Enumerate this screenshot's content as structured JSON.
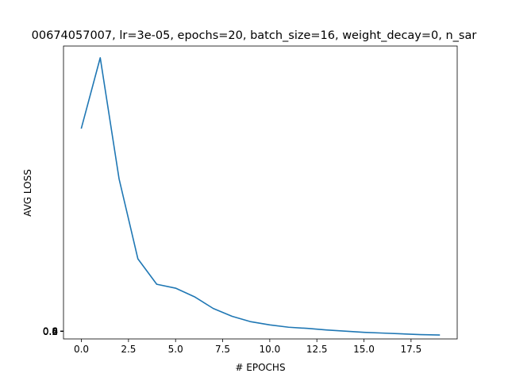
{
  "chart_data": {
    "type": "line",
    "title": "00674057007, lr=3e-05, epochs=20, batch_size=16, weight_decay=0, n_sar",
    "xlabel": "# EPOCHS",
    "ylabel": "AVG LOSS",
    "xlim": [
      -0.95,
      19.95
    ],
    "ylim": [
      -0.2,
      7.3
    ],
    "xticks": [
      0.0,
      2.5,
      5.0,
      7.5,
      10.0,
      12.5,
      15.0,
      17.5
    ],
    "xtick_labels": [
      "0.0",
      "2.5",
      "5.0",
      "7.5",
      "10.0",
      "12.5",
      "15.0",
      "17.5"
    ],
    "ytick_labels": [
      "0.0",
      "0.2",
      "0.4",
      "0.6",
      "0.8"
    ],
    "grid": false,
    "series": [
      {
        "color": "#1f77b4",
        "x": [
          0,
          1,
          2,
          3,
          4,
          5,
          6,
          7,
          8,
          9,
          10,
          11,
          12,
          13,
          14,
          15,
          16,
          17,
          18,
          19
        ],
        "values": [
          5.2,
          7.0,
          3.9,
          1.85,
          1.2,
          1.1,
          0.88,
          0.58,
          0.38,
          0.24,
          0.16,
          0.1,
          0.07,
          0.03,
          0.0,
          -0.03,
          -0.05,
          -0.07,
          -0.09,
          -0.1
        ]
      }
    ]
  }
}
